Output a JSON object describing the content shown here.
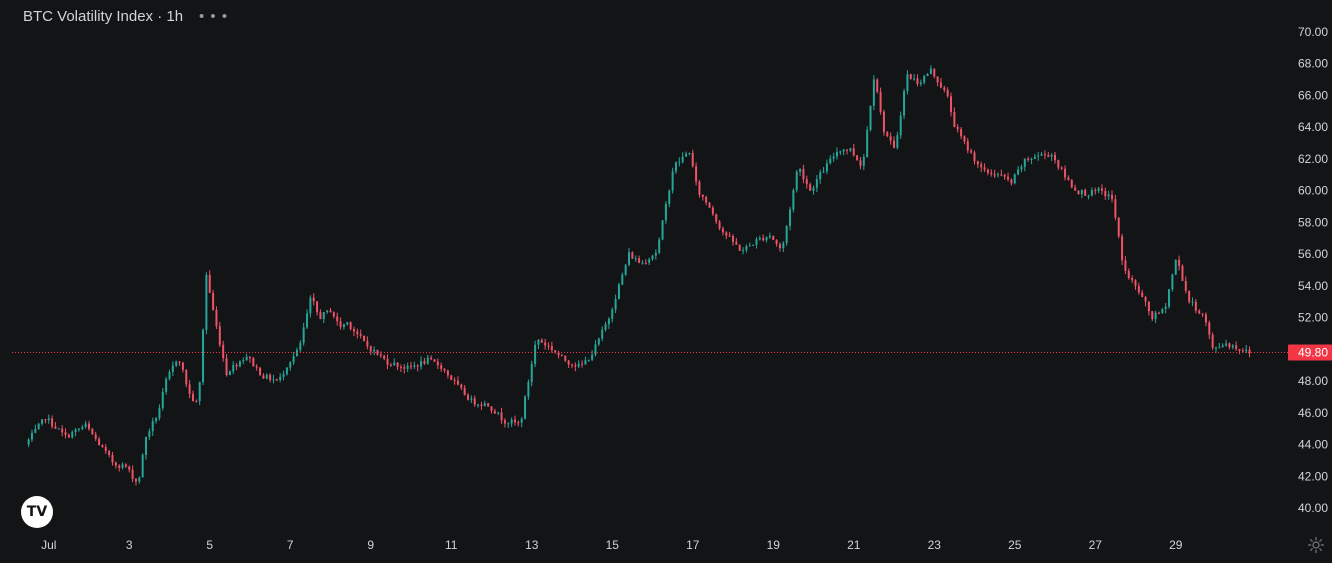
{
  "header": {
    "title": "BTC Volatility Index · 1h",
    "more_icon": "more-horizontal-icon"
  },
  "logo_icon": "tradingview-logo-icon",
  "settings_icon": "gear-icon",
  "colors": {
    "background": "#131416",
    "up": "#26a69a",
    "down": "#ef5367",
    "price_line": "#f23645",
    "text": "#d1d4dc"
  },
  "chart_data": {
    "type": "candlestick",
    "title": "BTC Volatility Index · 1h",
    "timeframe": "1h",
    "ylim": [
      39.2,
      70.0
    ],
    "y_ticks": [
      "70.00",
      "68.00",
      "66.00",
      "64.00",
      "62.00",
      "60.00",
      "58.00",
      "56.00",
      "54.00",
      "52.00",
      "49.80",
      "48.00",
      "46.00",
      "44.00",
      "42.00",
      "40.00"
    ],
    "x_ticks": [
      "Jul",
      "3",
      "5",
      "7",
      "9",
      "11",
      "13",
      "15",
      "17",
      "19",
      "21",
      "23",
      "25",
      "27",
      "29"
    ],
    "x_tick_days": [
      1,
      3,
      5,
      7,
      9,
      11,
      13,
      15,
      17,
      19,
      21,
      23,
      25,
      27,
      29
    ],
    "last_price": 49.8,
    "last_price_label": "49.80",
    "grid": false,
    "series_path_days": [
      0.5,
      1.0,
      1.5,
      2.0,
      2.4,
      2.7,
      3.0,
      3.3,
      3.5,
      3.8,
      4.0,
      4.3,
      4.6,
      4.8,
      5.0,
      5.2,
      5.5,
      5.6,
      6.0,
      6.4,
      6.8,
      7.0,
      7.3,
      7.6,
      7.8,
      8.1,
      8.3,
      8.5,
      9.0,
      9.5,
      10.0,
      10.5,
      10.8,
      11.3,
      11.6,
      12.0,
      12.4,
      12.8,
      13.2,
      13.6,
      13.8,
      14.0,
      14.3,
      14.6,
      15.0,
      15.5,
      15.8,
      16.2,
      16.6,
      17.0,
      17.2,
      17.5,
      17.8,
      18.3,
      18.7,
      19.0,
      19.3,
      19.7,
      20.0,
      20.3,
      20.7,
      21.0,
      21.3,
      21.6,
      21.8,
      22.1,
      22.4,
      22.7,
      23.0,
      23.4,
      23.6,
      23.9,
      24.3,
      24.7,
      25.0,
      25.3,
      25.6,
      26.0,
      26.3,
      26.6,
      26.9,
      27.2,
      27.5,
      27.8,
      28.2,
      28.5,
      28.8,
      29.1,
      29.4,
      29.8,
      30.0,
      30.3,
      30.6,
      30.9
    ],
    "series_path_values": [
      44.0,
      45.7,
      44.5,
      45.2,
      43.8,
      42.8,
      42.6,
      41.5,
      44.5,
      46.0,
      48.0,
      49.6,
      47.0,
      46.5,
      54.7,
      52.0,
      48.5,
      48.8,
      49.6,
      48.3,
      48.0,
      49.0,
      50.0,
      53.3,
      52.0,
      52.5,
      51.4,
      51.7,
      50.2,
      49.2,
      48.8,
      49.3,
      49.0,
      47.5,
      46.7,
      46.5,
      45.5,
      45.3,
      50.7,
      50.0,
      49.5,
      49.2,
      48.9,
      49.8,
      52.0,
      56.0,
      55.4,
      56.2,
      61.5,
      62.5,
      60.0,
      59.0,
      57.5,
      56.2,
      56.9,
      57.2,
      56.2,
      61.6,
      60.0,
      61.2,
      62.6,
      62.6,
      61.5,
      67.5,
      64.0,
      62.5,
      67.3,
      66.8,
      67.6,
      66.0,
      64.0,
      62.7,
      61.2,
      61.0,
      60.5,
      61.8,
      62.2,
      62.3,
      61.0,
      60.0,
      59.8,
      60.0,
      59.5,
      55.0,
      53.5,
      52.0,
      52.5,
      55.8,
      53.1,
      52.0,
      50.0,
      50.4,
      50.1,
      49.8
    ]
  }
}
